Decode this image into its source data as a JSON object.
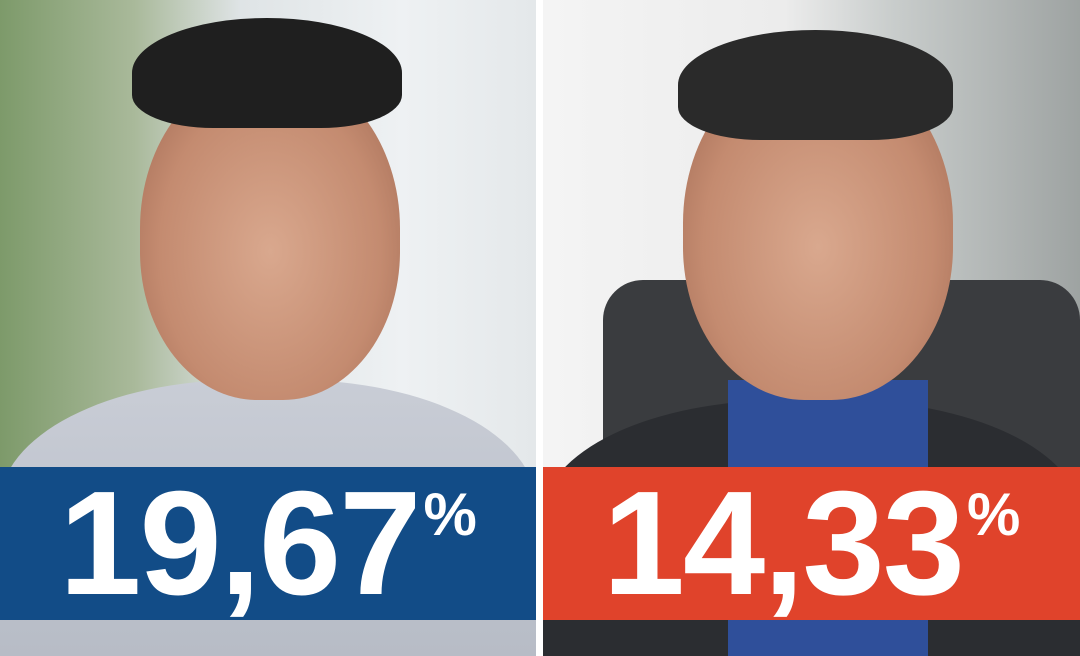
{
  "left": {
    "percentage": "19,67",
    "percent_sign": "%",
    "banner_color": "#124c87"
  },
  "right": {
    "percentage": "14,33",
    "percent_sign": "%",
    "banner_color": "#e0432b"
  }
}
